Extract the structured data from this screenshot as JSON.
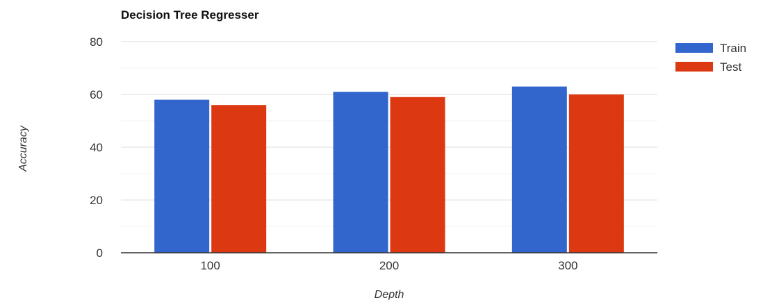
{
  "chart_data": {
    "type": "bar",
    "title": "Decision Tree Regresser",
    "xlabel": "Depth",
    "ylabel": "Accuracy",
    "categories": [
      "100",
      "200",
      "300"
    ],
    "series": [
      {
        "name": "Train",
        "color": "#3366cc",
        "values": [
          58,
          61,
          63
        ]
      },
      {
        "name": "Test",
        "color": "#dc3912",
        "values": [
          56,
          59,
          60
        ]
      }
    ],
    "ylim": [
      0,
      80
    ],
    "yticks": [
      "0",
      "20",
      "40",
      "60",
      "80"
    ],
    "grid": true,
    "legend": "right"
  }
}
